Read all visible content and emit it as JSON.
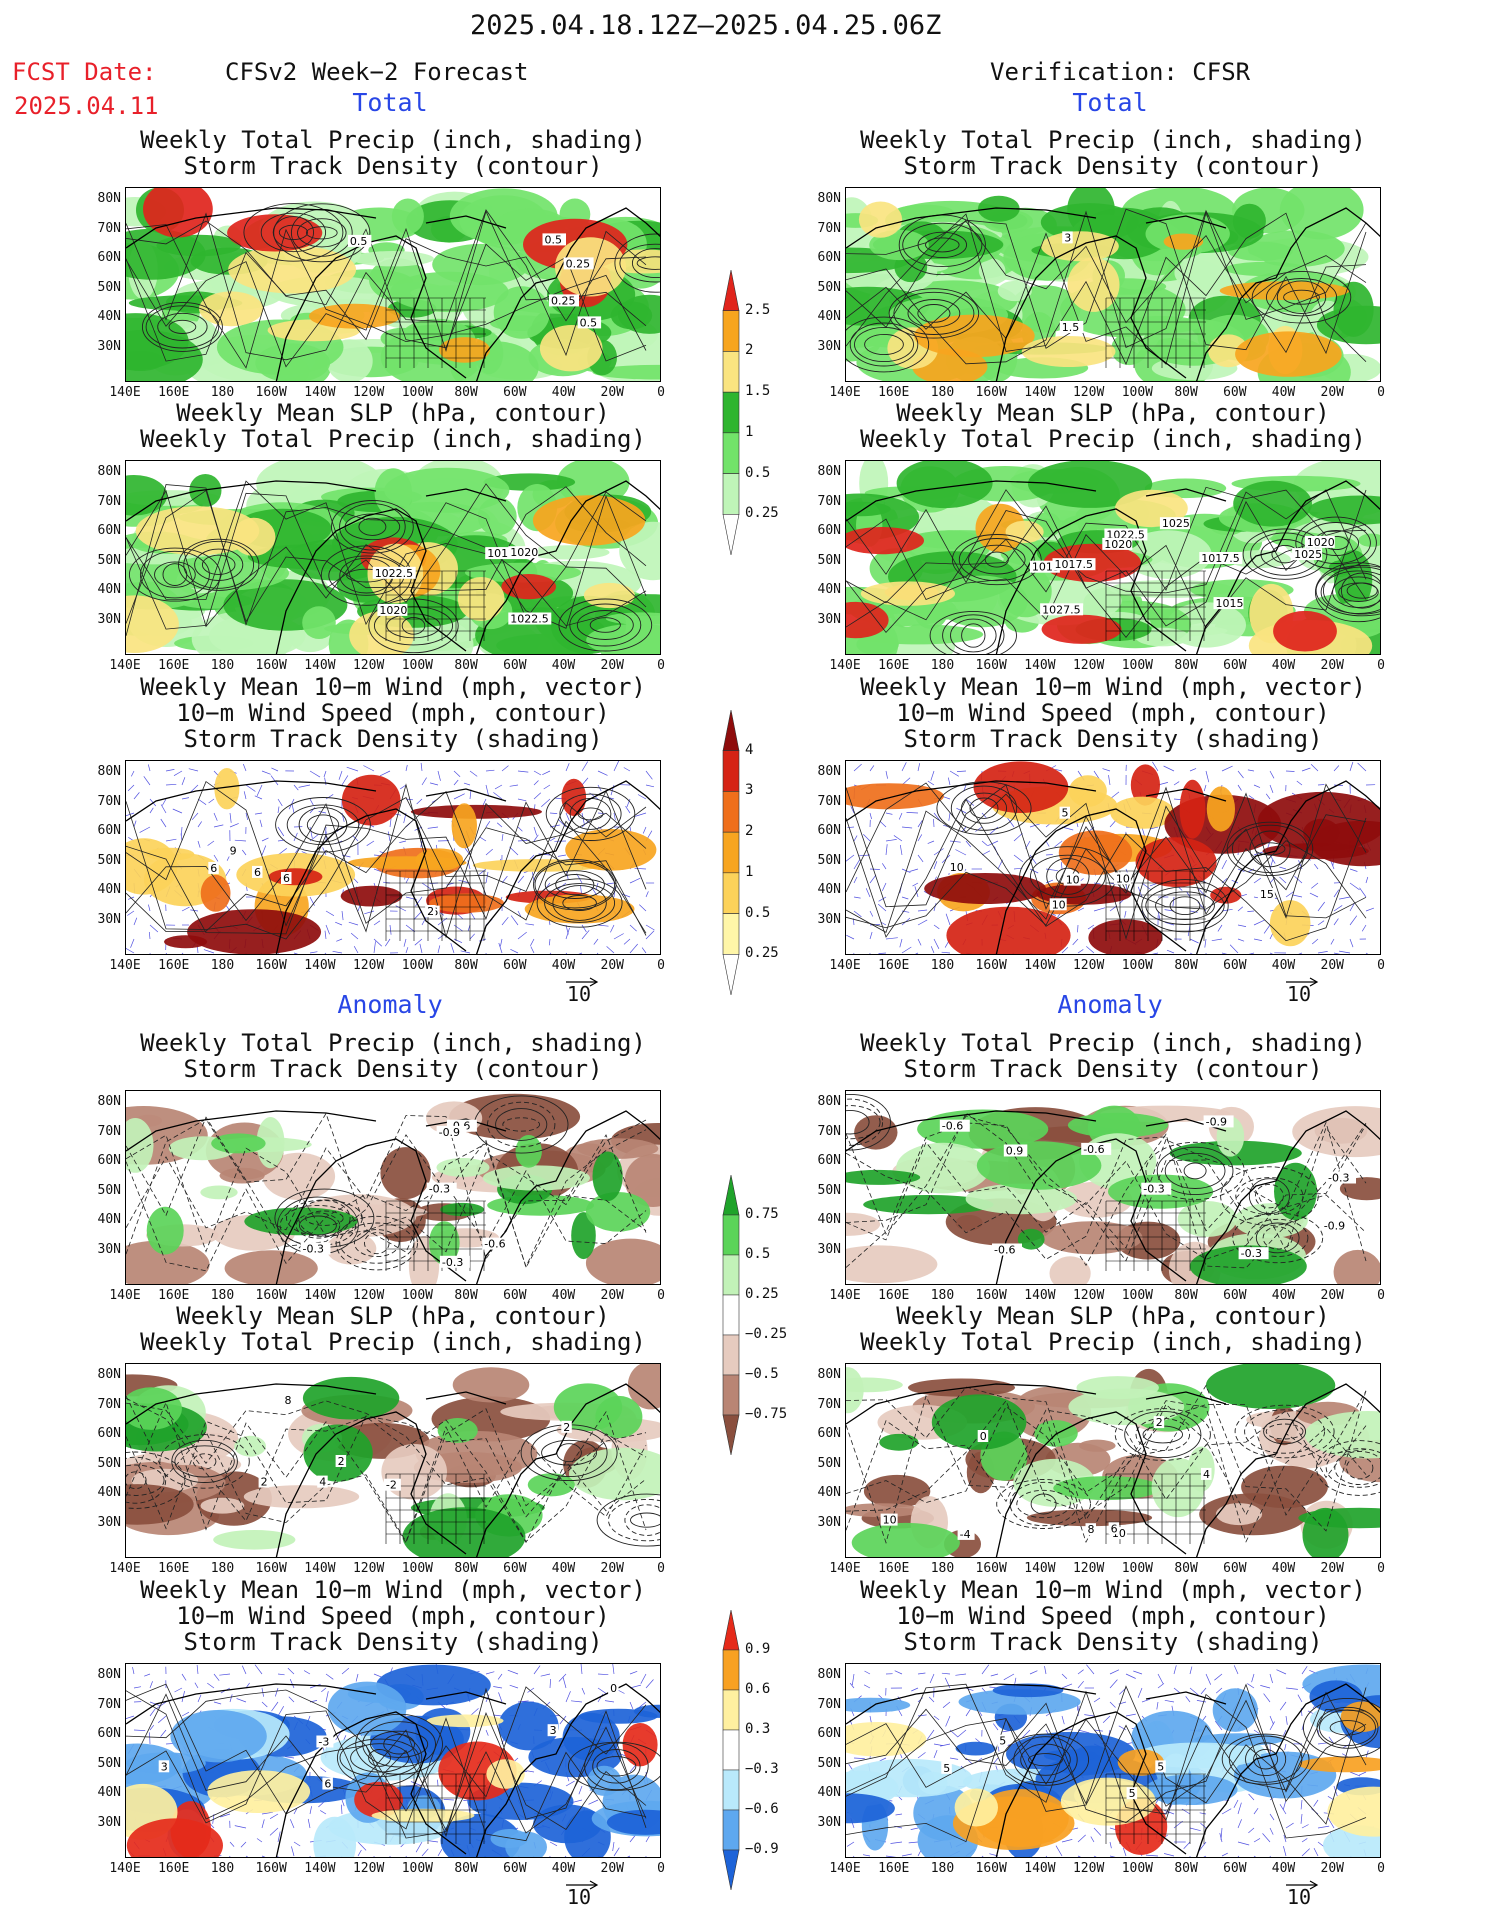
{
  "header": {
    "date_range": "2025.04.18.12Z–2025.04.25.06Z",
    "fcst_label": "FCST Date:",
    "fcst_date": "2025.04.11",
    "left_title": "CFSv2 Week−2 Forecast",
    "right_title": "Verification: CFSR",
    "total_label": "Total",
    "anomaly_label": "Anomaly"
  },
  "panel_titles": {
    "precip_storm": [
      "Weekly Total Precip (inch, shading)",
      "Storm Track Density (contour)"
    ],
    "slp_precip": [
      "Weekly Mean SLP (hPa, contour)",
      "Weekly Total Precip (inch, shading)"
    ],
    "wind_storm": [
      "Weekly Mean 10−m Wind (mph, vector)",
      "10−m Wind Speed (mph, contour)",
      "Storm Track Density (shading)"
    ]
  },
  "axes": {
    "lat_labels": [
      "80N",
      "70N",
      "60N",
      "50N",
      "40N",
      "30N"
    ],
    "lon_labels": [
      "140E",
      "160E",
      "180",
      "160W",
      "140W",
      "120W",
      "100W",
      "80W",
      "60W",
      "40W",
      "20W",
      "0"
    ]
  },
  "wind_reference": "10",
  "colorbars": {
    "precip_total": [
      "2.5",
      "2",
      "1.5",
      "1",
      "0.5",
      "0.25"
    ],
    "storm_total": [
      "4",
      "3",
      "2",
      "1",
      "0.5",
      "0.25"
    ],
    "precip_anom": [
      "0.75",
      "0.5",
      "0.25",
      "−0.25",
      "−0.5",
      "−0.75"
    ],
    "storm_anom": [
      "0.9",
      "0.6",
      "0.3",
      "−0.3",
      "−0.6",
      "−0.9"
    ]
  },
  "colors": {
    "precip_total": [
      "#bff5b8",
      "#72e36a",
      "#2fb52f",
      "#fae480",
      "#f7a51e",
      "#e0241c"
    ],
    "storm_total": [
      "#fff6a8",
      "#fcd25a",
      "#f7a520",
      "#ef6f1b",
      "#d52314",
      "#8e0c0c"
    ],
    "precip_anom": [
      "#8a4f3e",
      "#b98574",
      "#e6cbbf",
      "#c2f2b8",
      "#5bd459",
      "#1fa32a"
    ],
    "storm_anom": [
      "#1d63d8",
      "#5ea8ef",
      "#b9e9fb",
      "#fff0a0",
      "#f8a122",
      "#e52a1a"
    ]
  },
  "contour_labels": {
    "r1c1": [
      "0.5",
      "0.25",
      "0.5",
      "0.25",
      "0.5"
    ],
    "r1c2": [
      "1.5",
      "3"
    ],
    "r2c1": [
      "1017.5",
      "1022.5",
      "1020",
      "1022.5",
      "1020"
    ],
    "r2c2": [
      "1027.5",
      "1022.5",
      "1025",
      "1020",
      "1015",
      "1017.5",
      "1025",
      "1017.5",
      "1020",
      "1015"
    ],
    "r3c1": [
      "6",
      "6",
      "2",
      "6",
      "9",
      "6"
    ],
    "r3c2": [
      "10",
      "10",
      "15",
      "10",
      "5",
      "10"
    ],
    "r4c1": [
      "-0.3",
      "-0.3",
      "-0.3",
      "-0.6",
      "-0.9",
      "-0.6"
    ],
    "r4c2": [
      "-0.3",
      "-0.6",
      "-0.9",
      "-0.3",
      "-0.6",
      "-0.9",
      "0.9",
      "-0.3",
      "-0.6"
    ],
    "r5c1": [
      "4",
      "8",
      "2",
      "2",
      "-2",
      "2"
    ],
    "r5c2": [
      "10",
      "8",
      "10",
      "6",
      "4",
      "0",
      "2",
      "-4"
    ],
    "r6c1": [
      "0",
      "3",
      "6",
      "3",
      "-3"
    ],
    "r6c2": [
      "5",
      "5",
      "5",
      "5"
    ]
  }
}
